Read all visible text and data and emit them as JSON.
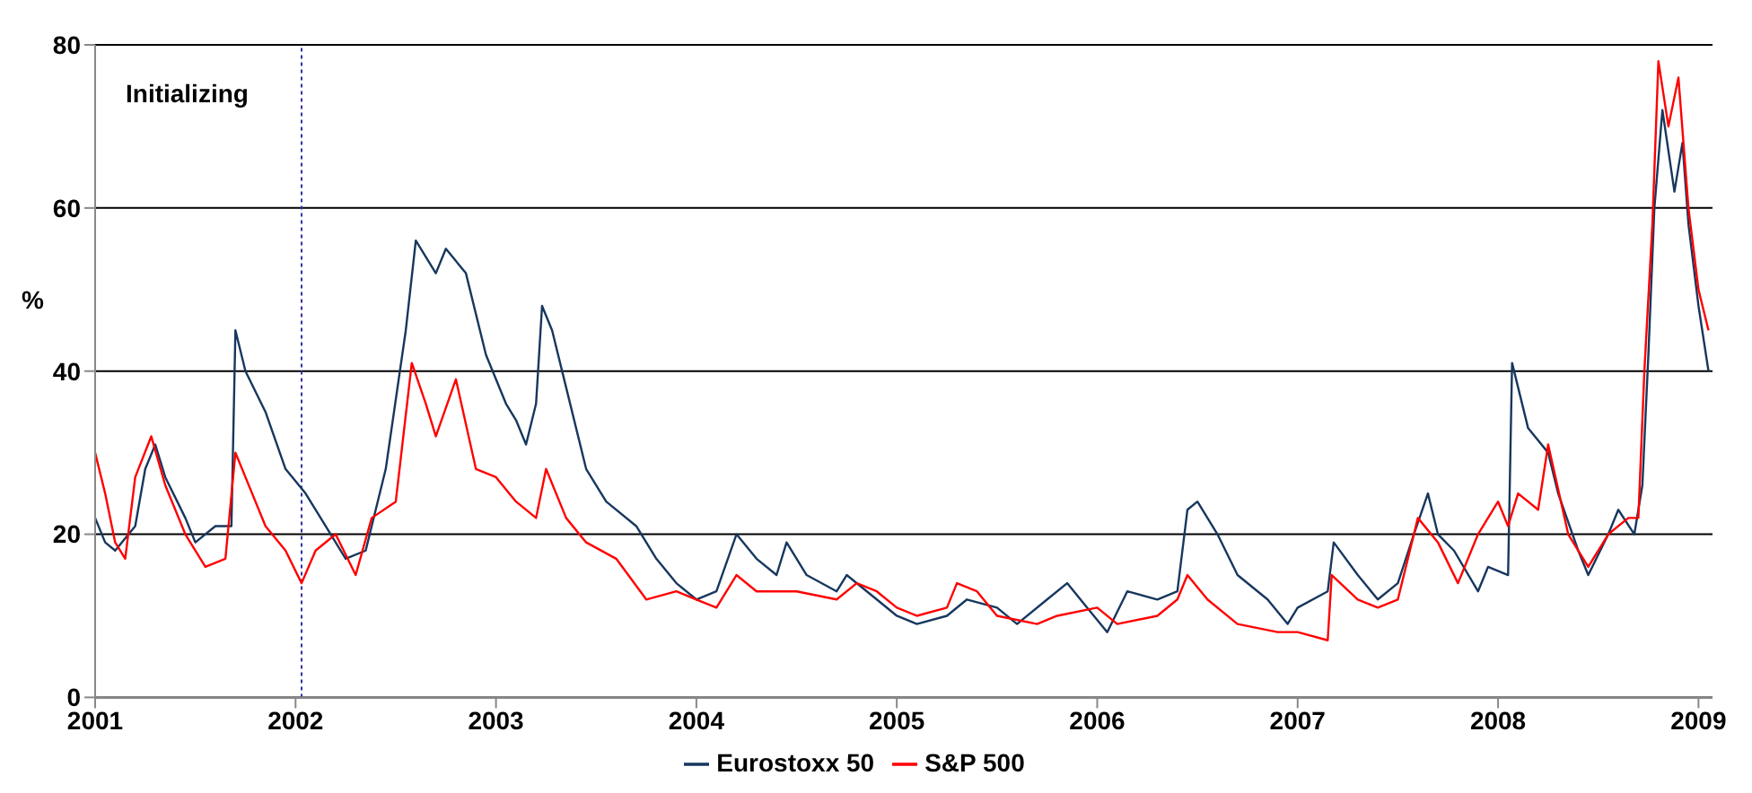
{
  "chart_data": {
    "type": "line",
    "ylabel": "%",
    "annotations": [
      "Initializing"
    ],
    "xlim": [
      2001,
      2009.07
    ],
    "xticks": [
      2001,
      2002,
      2003,
      2004,
      2005,
      2006,
      2007,
      2008,
      2009
    ],
    "ylim": [
      0,
      80
    ],
    "yticks": [
      0,
      20,
      40,
      60,
      80
    ],
    "grid": "y",
    "legend": "bottom",
    "marker": "none",
    "line_style": "solid",
    "ref_lines": [
      {
        "axis": "x",
        "value": 2002.03,
        "color": "#3333aa",
        "line_style": "dotted"
      }
    ],
    "series": [
      {
        "name": "Eurostoxx 50",
        "color": "#17375e",
        "x": [
          2001.0,
          2001.05,
          2001.1,
          2001.2,
          2001.25,
          2001.3,
          2001.35,
          2001.45,
          2001.5,
          2001.6,
          2001.68,
          2001.7,
          2001.75,
          2001.85,
          2001.95,
          2002.05,
          2002.15,
          2002.25,
          2002.35,
          2002.45,
          2002.55,
          2002.6,
          2002.7,
          2002.75,
          2002.85,
          2002.95,
          2003.05,
          2003.1,
          2003.15,
          2003.2,
          2003.23,
          2003.28,
          2003.35,
          2003.45,
          2003.55,
          2003.7,
          2003.8,
          2003.9,
          2004.0,
          2004.1,
          2004.2,
          2004.3,
          2004.4,
          2004.45,
          2004.55,
          2004.7,
          2004.75,
          2004.9,
          2005.0,
          2005.1,
          2005.25,
          2005.35,
          2005.5,
          2005.6,
          2005.75,
          2005.85,
          2005.95,
          2006.05,
          2006.15,
          2006.3,
          2006.4,
          2006.45,
          2006.5,
          2006.6,
          2006.7,
          2006.85,
          2006.95,
          2007.0,
          2007.15,
          2007.18,
          2007.3,
          2007.4,
          2007.5,
          2007.58,
          2007.65,
          2007.7,
          2007.78,
          2007.9,
          2007.95,
          2008.05,
          2008.07,
          2008.15,
          2008.25,
          2008.3,
          2008.4,
          2008.45,
          2008.55,
          2008.6,
          2008.68,
          2008.72,
          2008.75,
          2008.78,
          2008.82,
          2008.88,
          2008.92,
          2008.95,
          2009.0,
          2009.05
        ],
        "values": [
          22,
          19,
          18,
          21,
          28,
          31,
          27,
          22,
          19,
          21,
          21,
          45,
          40,
          35,
          28,
          25,
          21,
          17,
          18,
          28,
          45,
          56,
          52,
          55,
          52,
          42,
          36,
          34,
          31,
          36,
          48,
          45,
          38,
          28,
          24,
          21,
          17,
          14,
          12,
          13,
          20,
          17,
          15,
          19,
          15,
          13,
          15,
          12,
          10,
          9,
          10,
          12,
          11,
          9,
          12,
          14,
          11,
          8,
          13,
          12,
          13,
          23,
          24,
          20,
          15,
          12,
          9,
          11,
          13,
          19,
          15,
          12,
          14,
          20,
          25,
          20,
          18,
          13,
          16,
          15,
          41,
          33,
          30,
          25,
          18,
          15,
          20,
          23,
          20,
          26,
          42,
          60,
          72,
          62,
          68,
          58,
          48,
          40
        ]
      },
      {
        "name": "S&P 500",
        "color": "#ff0000",
        "x": [
          2001.0,
          2001.05,
          2001.1,
          2001.15,
          2001.2,
          2001.28,
          2001.35,
          2001.45,
          2001.55,
          2001.65,
          2001.7,
          2001.75,
          2001.85,
          2001.95,
          2002.03,
          2002.1,
          2002.2,
          2002.3,
          2002.38,
          2002.5,
          2002.58,
          2002.65,
          2002.7,
          2002.8,
          2002.9,
          2003.0,
          2003.1,
          2003.2,
          2003.25,
          2003.35,
          2003.45,
          2003.6,
          2003.75,
          2003.9,
          2004.0,
          2004.1,
          2004.2,
          2004.3,
          2004.5,
          2004.7,
          2004.8,
          2004.9,
          2005.0,
          2005.1,
          2005.25,
          2005.3,
          2005.4,
          2005.5,
          2005.7,
          2005.8,
          2006.0,
          2006.1,
          2006.3,
          2006.4,
          2006.45,
          2006.55,
          2006.7,
          2006.9,
          2007.0,
          2007.15,
          2007.17,
          2007.3,
          2007.4,
          2007.5,
          2007.6,
          2007.7,
          2007.8,
          2007.9,
          2008.0,
          2008.05,
          2008.1,
          2008.2,
          2008.25,
          2008.35,
          2008.45,
          2008.55,
          2008.65,
          2008.7,
          2008.73,
          2008.77,
          2008.8,
          2008.85,
          2008.9,
          2008.95,
          2009.0,
          2009.05
        ],
        "values": [
          30,
          25,
          19,
          17,
          27,
          32,
          26,
          20,
          16,
          17,
          30,
          27,
          21,
          18,
          14,
          18,
          20,
          15,
          22,
          24,
          41,
          36,
          32,
          39,
          28,
          27,
          24,
          22,
          28,
          22,
          19,
          17,
          12,
          13,
          12,
          11,
          15,
          13,
          13,
          12,
          14,
          13,
          11,
          10,
          11,
          14,
          13,
          10,
          9,
          10,
          11,
          9,
          10,
          12,
          15,
          12,
          9,
          8,
          8,
          7,
          15,
          12,
          11,
          12,
          22,
          19,
          14,
          20,
          24,
          21,
          25,
          23,
          31,
          20,
          16,
          20,
          22,
          22,
          40,
          58,
          78,
          70,
          76,
          60,
          50,
          45
        ]
      }
    ]
  }
}
